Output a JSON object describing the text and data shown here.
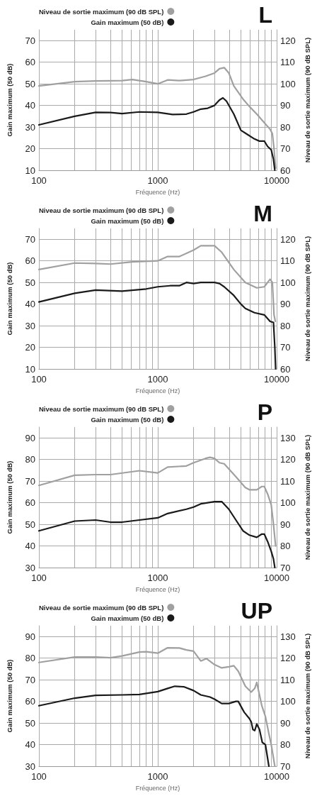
{
  "chart_data": [
    {
      "type": "line",
      "title": "L",
      "xlabel": "Fréquence (Hz)",
      "ylabel": "Gain maximum (50 dB)",
      "y2label": "Niveau de sortie maximum (90 dB SPL)",
      "log": "x",
      "grid": true,
      "legend": "top left",
      "marker": "none",
      "line_style": "solid",
      "xlim": [
        100,
        10000
      ],
      "xticks": [
        100,
        {
          "value": 200,
          "label": null
        },
        {
          "value": 300,
          "label": null
        },
        {
          "value": 400,
          "label": null
        },
        {
          "value": 500,
          "label": null
        },
        {
          "value": 600,
          "label": null
        },
        {
          "value": 700,
          "label": null
        },
        {
          "value": 800,
          "label": null
        },
        {
          "value": 900,
          "label": null
        },
        1000,
        {
          "value": 2000,
          "label": null
        },
        {
          "value": 3000,
          "label": null
        },
        {
          "value": 4000,
          "label": null
        },
        {
          "value": 5000,
          "label": null
        },
        {
          "value": 6000,
          "label": null
        },
        {
          "value": 7000,
          "label": null
        },
        {
          "value": 8000,
          "label": null
        },
        {
          "value": 9000,
          "label": null
        },
        10000
      ],
      "ylim": [
        10,
        75
      ],
      "yticks": [
        10,
        20,
        30,
        40,
        50,
        60,
        70
      ],
      "y2lim": [
        60,
        125
      ],
      "y2ticks": [
        60,
        70,
        80,
        90,
        100,
        110,
        120
      ],
      "series": [
        {
          "name": "Niveau de sortie maximum (90 dB SPL)",
          "color": "#a0a0a0",
          "axis": "y2",
          "x": [
            100,
            200,
            300,
            400,
            500,
            610,
            800,
            1000,
            1210,
            1520,
            2000,
            2520,
            3000,
            3300,
            3620,
            3960,
            4360,
            5200,
            5900,
            6800,
            7870,
            8800,
            9200,
            9500,
            9800
          ],
          "values": [
            99,
            101,
            101.3,
            101.4,
            101.5,
            102,
            101,
            100,
            101.8,
            101.5,
            102,
            103.5,
            105,
            107,
            107.5,
            105,
            99,
            93,
            89.5,
            86,
            82,
            79,
            77,
            70,
            61
          ]
        },
        {
          "name": "Gain maximum (50 dB)",
          "color": "#1a1a1a",
          "x": [
            100,
            200,
            300,
            400,
            500,
            700,
            1000,
            1330,
            1740,
            2000,
            2300,
            2630,
            3000,
            3300,
            3530,
            3780,
            4360,
            5000,
            5700,
            6500,
            7150,
            7870,
            8400,
            9000,
            9400,
            9650
          ],
          "values": [
            31,
            35,
            36.8,
            36.7,
            36.2,
            37,
            36.8,
            35.8,
            36,
            37,
            38.3,
            38.7,
            40,
            42.5,
            43.5,
            42,
            36,
            28.5,
            26.5,
            24.5,
            23.5,
            23.5,
            21,
            19.5,
            15,
            10
          ]
        }
      ]
    },
    {
      "type": "line",
      "title": "M",
      "xlabel": "Fréquence (Hz)",
      "ylabel": "Gain maximum (50 dB)",
      "y2label": "Niveau de sortie maximum (90 dB SPL)",
      "log": "x",
      "grid": true,
      "legend": "top left",
      "marker": "none",
      "line_style": "solid",
      "xlim": [
        100,
        10000
      ],
      "xticks": [
        100,
        {
          "value": 200,
          "label": null
        },
        {
          "value": 300,
          "label": null
        },
        {
          "value": 400,
          "label": null
        },
        {
          "value": 500,
          "label": null
        },
        {
          "value": 600,
          "label": null
        },
        {
          "value": 700,
          "label": null
        },
        {
          "value": 800,
          "label": null
        },
        {
          "value": 900,
          "label": null
        },
        1000,
        {
          "value": 2000,
          "label": null
        },
        {
          "value": 3000,
          "label": null
        },
        {
          "value": 4000,
          "label": null
        },
        {
          "value": 5000,
          "label": null
        },
        {
          "value": 6000,
          "label": null
        },
        {
          "value": 7000,
          "label": null
        },
        {
          "value": 8000,
          "label": null
        },
        {
          "value": 9000,
          "label": null
        },
        10000
      ],
      "ylim": [
        10,
        75
      ],
      "yticks": [
        10,
        20,
        30,
        40,
        50,
        60,
        70
      ],
      "y2lim": [
        60,
        125
      ],
      "y2ticks": [
        60,
        70,
        80,
        90,
        100,
        110,
        120
      ],
      "series": [
        {
          "name": "Niveau de sortie maximum (90 dB SPL)",
          "color": "#a0a0a0",
          "axis": "y2",
          "x": [
            100,
            200,
            300,
            400,
            610,
            1000,
            1210,
            1520,
            2000,
            2300,
            3000,
            3450,
            4360,
            5450,
            6800,
            7870,
            8800,
            9200,
            9500,
            9750
          ],
          "values": [
            106,
            109,
            108.8,
            108.5,
            109.5,
            110,
            112,
            112,
            115,
            117,
            117,
            114,
            106,
            100,
            97.5,
            98,
            101.5,
            100,
            85,
            82
          ]
        },
        {
          "name": "Gain maximum (50 dB)",
          "color": "#1a1a1a",
          "x": [
            100,
            200,
            300,
            500,
            800,
            1000,
            1270,
            1520,
            1740,
            2000,
            2300,
            3000,
            3300,
            3620,
            4360,
            5000,
            5450,
            6500,
            7870,
            8800,
            9400,
            9650,
            9800
          ],
          "values": [
            41,
            45,
            46.5,
            46,
            47,
            48,
            48.5,
            48.5,
            50,
            49.5,
            50,
            50,
            49.5,
            48,
            44,
            40,
            38,
            36,
            35,
            32,
            31.5,
            20,
            10
          ]
        }
      ]
    },
    {
      "type": "line",
      "title": "P",
      "xlabel": "Fréquence (Hz)",
      "ylabel": "Gain maximum (50 dB)",
      "y2label": "Niveau de sortie maximum (90 dB SPL)",
      "log": "x",
      "grid": true,
      "legend": "top left",
      "marker": "none",
      "line_style": "solid",
      "xlim": [
        100,
        10000
      ],
      "xticks": [
        100,
        {
          "value": 200,
          "label": null
        },
        {
          "value": 300,
          "label": null
        },
        {
          "value": 400,
          "label": null
        },
        {
          "value": 500,
          "label": null
        },
        {
          "value": 600,
          "label": null
        },
        {
          "value": 700,
          "label": null
        },
        {
          "value": 800,
          "label": null
        },
        {
          "value": 900,
          "label": null
        },
        1000,
        {
          "value": 2000,
          "label": null
        },
        {
          "value": 3000,
          "label": null
        },
        {
          "value": 4000,
          "label": null
        },
        {
          "value": 5000,
          "label": null
        },
        {
          "value": 6000,
          "label": null
        },
        {
          "value": 7000,
          "label": null
        },
        {
          "value": 8000,
          "label": null
        },
        {
          "value": 9000,
          "label": null
        },
        10000
      ],
      "ylim": [
        30,
        95
      ],
      "yticks": [
        30,
        40,
        50,
        60,
        70,
        80,
        90
      ],
      "y2lim": [
        70,
        135
      ],
      "y2ticks": [
        70,
        80,
        90,
        100,
        110,
        120,
        130
      ],
      "series": [
        {
          "name": "Niveau de sortie maximum (90 dB SPL)",
          "color": "#a0a0a0",
          "axis": "y2",
          "x": [
            100,
            200,
            300,
            400,
            700,
            1000,
            1210,
            1740,
            2000,
            2520,
            2750,
            3000,
            3300,
            3620,
            4540,
            5450,
            5900,
            6800,
            7500,
            7870,
            8400,
            9000,
            9400,
            9800
          ],
          "values": [
            108,
            112.7,
            113,
            113,
            114.8,
            113.8,
            116.5,
            117,
            118.5,
            120.5,
            121,
            120.5,
            118.5,
            118,
            112,
            107,
            106,
            106,
            107.5,
            107.5,
            104,
            99,
            90,
            80
          ]
        },
        {
          "name": "Gain maximum (50 dB)",
          "color": "#1a1a1a",
          "x": [
            100,
            200,
            300,
            400,
            500,
            700,
            1000,
            1210,
            1740,
            2000,
            2300,
            3000,
            3450,
            3960,
            4540,
            5210,
            5900,
            6800,
            7500,
            7870,
            8400,
            9000,
            9400,
            9650
          ],
          "values": [
            47,
            51.5,
            52,
            51,
            51,
            52,
            53,
            55,
            57,
            58,
            59.5,
            60.5,
            60.5,
            57,
            52,
            47,
            45,
            44,
            45.5,
            45.5,
            42,
            37.5,
            34,
            30
          ]
        }
      ]
    },
    {
      "type": "line",
      "title": "UP",
      "xlabel": "Fréquence (Hz)",
      "ylabel": "Gain maximum (50 dB)",
      "y2label": "Niveau de sortie maximum (90 dB SPL)",
      "log": "x",
      "grid": true,
      "legend": "top left",
      "marker": "none",
      "line_style": "solid",
      "xlim": [
        100,
        10000
      ],
      "xticks": [
        100,
        {
          "value": 200,
          "label": null
        },
        {
          "value": 300,
          "label": null
        },
        {
          "value": 400,
          "label": null
        },
        {
          "value": 500,
          "label": null
        },
        {
          "value": 600,
          "label": null
        },
        {
          "value": 700,
          "label": null
        },
        {
          "value": 800,
          "label": null
        },
        {
          "value": 900,
          "label": null
        },
        1000,
        {
          "value": 2000,
          "label": null
        },
        {
          "value": 3000,
          "label": null
        },
        {
          "value": 4000,
          "label": null
        },
        {
          "value": 5000,
          "label": null
        },
        {
          "value": 6000,
          "label": null
        },
        {
          "value": 7000,
          "label": null
        },
        {
          "value": 8000,
          "label": null
        },
        {
          "value": 9000,
          "label": null
        },
        10000
      ],
      "ylim": [
        30,
        95
      ],
      "yticks": [
        30,
        40,
        50,
        60,
        70,
        80,
        90
      ],
      "y2lim": [
        70,
        135
      ],
      "y2ticks": [
        70,
        80,
        90,
        100,
        110,
        120,
        130
      ],
      "series": [
        {
          "name": "Niveau de sortie maximum (90 dB SPL)",
          "color": "#a0a0a0",
          "axis": "y2",
          "x": [
            100,
            200,
            300,
            400,
            500,
            700,
            800,
            1000,
            1210,
            1520,
            1740,
            2000,
            2300,
            2570,
            3000,
            3450,
            3960,
            4360,
            4750,
            5450,
            6110,
            6540,
            6800,
            7500,
            8040,
            8600,
            9000,
            9650
          ],
          "values": [
            118,
            120.5,
            120.5,
            120.2,
            121,
            122.8,
            123,
            122.3,
            124.8,
            124.7,
            123.8,
            123.2,
            118.7,
            119.8,
            117,
            115.5,
            116,
            116.5,
            114,
            107,
            104.3,
            106,
            108.8,
            98,
            93,
            85,
            80,
            70
          ]
        },
        {
          "name": "Gain maximum (50 dB)",
          "color": "#1a1a1a",
          "x": [
            100,
            200,
            300,
            500,
            700,
            1000,
            1210,
            1390,
            1670,
            2000,
            2300,
            2750,
            3000,
            3450,
            3960,
            4540,
            4750,
            5330,
            5900,
            6110,
            6310,
            6540,
            6800,
            7170,
            7570,
            8040,
            8600
          ],
          "values": [
            58,
            61.5,
            62.8,
            63,
            63.2,
            64.5,
            66,
            67,
            66.7,
            65,
            63,
            62,
            61,
            59,
            59,
            60,
            60,
            55,
            52,
            50.5,
            47,
            46.5,
            49.5,
            47,
            41,
            40,
            30
          ]
        }
      ]
    }
  ]
}
